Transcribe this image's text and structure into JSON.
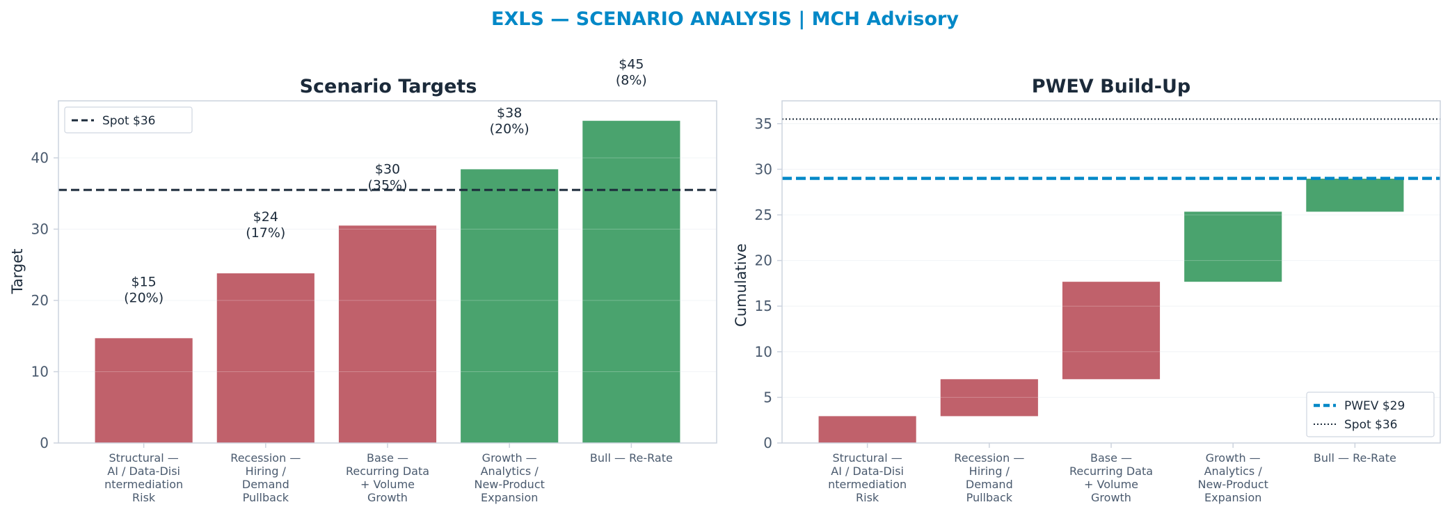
{
  "figure": {
    "title": "EXLS — SCENARIO ANALYSIS | MCH Advisory",
    "title_color": "#0288c7"
  },
  "colors": {
    "negative": "#c0616b",
    "positive": "#4aa36e",
    "spot_line": "#1b2a3a",
    "pwev_line": "#0288c7",
    "axis": "#ccd3de",
    "grid": "#eef1f5"
  },
  "chart_data": [
    {
      "type": "bar",
      "title": "Scenario Targets",
      "xlabel": "",
      "ylabel": "Target",
      "ylim": [
        0,
        48
      ],
      "yticks": [
        0,
        10,
        20,
        30,
        40
      ],
      "grid": true,
      "legend_position": "top-left",
      "categories": [
        [
          "Structural —",
          "AI / Data-Disi",
          "ntermediation",
          "Risk"
        ],
        [
          "Recession —",
          "Hiring /",
          "Demand",
          "Pullback"
        ],
        [
          "Base —",
          "Recurring Data",
          "+ Volume",
          "Growth"
        ],
        [
          "Growth —",
          "Analytics /",
          "New-Product",
          "Expansion"
        ],
        [
          "Bull — Re-Rate"
        ]
      ],
      "values": [
        14.7,
        23.8,
        30.5,
        38.4,
        45.2
      ],
      "bar_labels": [
        [
          "$15",
          "(20%)"
        ],
        [
          "$24",
          "(17%)"
        ],
        [
          "$30",
          "(35%)"
        ],
        [
          "$38",
          "(20%)"
        ],
        [
          "$45",
          "(8%)"
        ]
      ],
      "polarity": [
        "negative",
        "negative",
        "negative",
        "positive",
        "positive"
      ],
      "reference_lines": [
        {
          "name": "Spot $36",
          "value": 35.5,
          "style": "dashed",
          "color_key": "spot_line"
        }
      ]
    },
    {
      "type": "bar",
      "subtype": "waterfall",
      "title": "PWEV Build-Up",
      "xlabel": "",
      "ylabel": "Cumulative",
      "ylim": [
        0,
        37.5
      ],
      "yticks": [
        0,
        5,
        10,
        15,
        20,
        25,
        30,
        35
      ],
      "grid": true,
      "legend_position": "bottom-right",
      "categories": [
        [
          "Structural —",
          "AI / Data-Disi",
          "ntermediation",
          "Risk"
        ],
        [
          "Recession —",
          "Hiring /",
          "Demand",
          "Pullback"
        ],
        [
          "Base —",
          "Recurring Data",
          "+ Volume",
          "Growth"
        ],
        [
          "Growth —",
          "Analytics /",
          "New-Product",
          "Expansion"
        ],
        [
          "Bull — Re-Rate"
        ]
      ],
      "segments": [
        {
          "start": 0,
          "end": 2.94
        },
        {
          "start": 2.94,
          "end": 6.99
        },
        {
          "start": 6.99,
          "end": 17.67
        },
        {
          "start": 17.67,
          "end": 25.35
        },
        {
          "start": 25.35,
          "end": 28.97
        }
      ],
      "polarity": [
        "negative",
        "negative",
        "negative",
        "positive",
        "positive"
      ],
      "reference_lines": [
        {
          "name": "PWEV $29",
          "value": 29.0,
          "style": "dashed-thick",
          "color_key": "pwev_line"
        },
        {
          "name": "Spot $36",
          "value": 35.5,
          "style": "dotted",
          "color_key": "spot_line"
        }
      ]
    }
  ]
}
